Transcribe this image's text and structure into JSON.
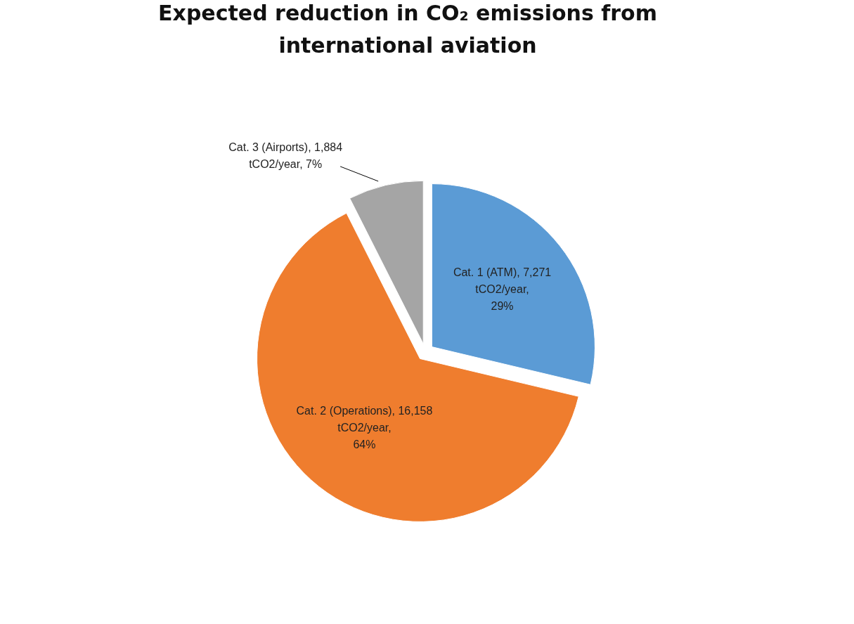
{
  "chart_data": {
    "type": "pie",
    "title": "Expected reduction in CO₂ emissions from international aviation",
    "categories": [
      "Cat. 1 (ATM)",
      "Cat. 2 (Operations)",
      "Cat. 3 (Airports)"
    ],
    "values": [
      7271,
      16158,
      1884
    ],
    "colors": [
      "#5b9bd5",
      "#ef7d2e",
      "#a5a5a5"
    ],
    "value_labels": [
      "7,271 tCO2/year, 29%",
      "16,158 tCO2/year, 64%",
      "1,884 tCO2/year, 7%"
    ],
    "legend": false
  }
}
